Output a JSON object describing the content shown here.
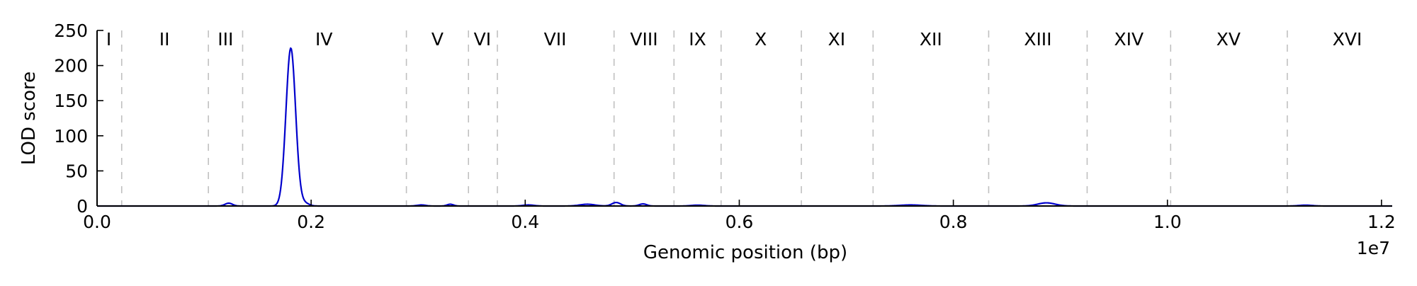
{
  "chart_data": {
    "type": "line",
    "xlabel": "Genomic position (bp)",
    "ylabel": "LOD score",
    "x_offset_label": "1e7",
    "xlim": [
      0,
      12100000
    ],
    "ylim": [
      0,
      250
    ],
    "xticks": [
      0,
      2000000,
      4000000,
      6000000,
      8000000,
      10000000,
      12000000
    ],
    "xtick_labels": [
      "0.0",
      "0.2",
      "0.4",
      "0.6",
      "0.8",
      "1.0",
      "1.2"
    ],
    "yticks": [
      0,
      50,
      100,
      150,
      200,
      250
    ],
    "ytick_labels": [
      "0",
      "50",
      "100",
      "150",
      "200",
      "250"
    ],
    "grid": false,
    "line_color": "#0000cc",
    "boundary_color": "#c0c0c0",
    "chromosome_boundaries": [
      230000,
      1040000,
      1360000,
      2890000,
      3470000,
      3740000,
      4830000,
      5390000,
      5830000,
      6580000,
      7250000,
      8330000,
      9250000,
      10030000,
      11120000
    ],
    "chromosomes": [
      {
        "label": "I",
        "center": 110000
      },
      {
        "label": "II",
        "center": 630000
      },
      {
        "label": "III",
        "center": 1200000
      },
      {
        "label": "IV",
        "center": 2120000
      },
      {
        "label": "V",
        "center": 3180000
      },
      {
        "label": "VI",
        "center": 3600000
      },
      {
        "label": "VII",
        "center": 4280000
      },
      {
        "label": "VIII",
        "center": 5110000
      },
      {
        "label": "IX",
        "center": 5610000
      },
      {
        "label": "X",
        "center": 6200000
      },
      {
        "label": "XI",
        "center": 6910000
      },
      {
        "label": "XII",
        "center": 7790000
      },
      {
        "label": "XIII",
        "center": 8790000
      },
      {
        "label": "XIV",
        "center": 9640000
      },
      {
        "label": "XV",
        "center": 10570000
      },
      {
        "label": "XVI",
        "center": 11680000
      }
    ],
    "series": [
      {
        "peaks": [
          {
            "x": 1230000,
            "height": 4,
            "width": 35000
          },
          {
            "x": 1810000,
            "height": 225,
            "width": 45000
          },
          {
            "x": 1940000,
            "height": 4,
            "width": 40000
          },
          {
            "x": 3030000,
            "height": 1.5,
            "width": 40000
          },
          {
            "x": 3300000,
            "height": 2.5,
            "width": 30000
          },
          {
            "x": 4030000,
            "height": 1.5,
            "width": 50000
          },
          {
            "x": 4580000,
            "height": 2.5,
            "width": 70000
          },
          {
            "x": 4850000,
            "height": 5,
            "width": 40000
          },
          {
            "x": 5100000,
            "height": 3,
            "width": 35000
          },
          {
            "x": 5610000,
            "height": 1.2,
            "width": 60000
          },
          {
            "x": 7600000,
            "height": 1.5,
            "width": 100000
          },
          {
            "x": 8870000,
            "height": 4.5,
            "width": 80000
          },
          {
            "x": 11290000,
            "height": 1.2,
            "width": 60000
          }
        ]
      }
    ]
  }
}
